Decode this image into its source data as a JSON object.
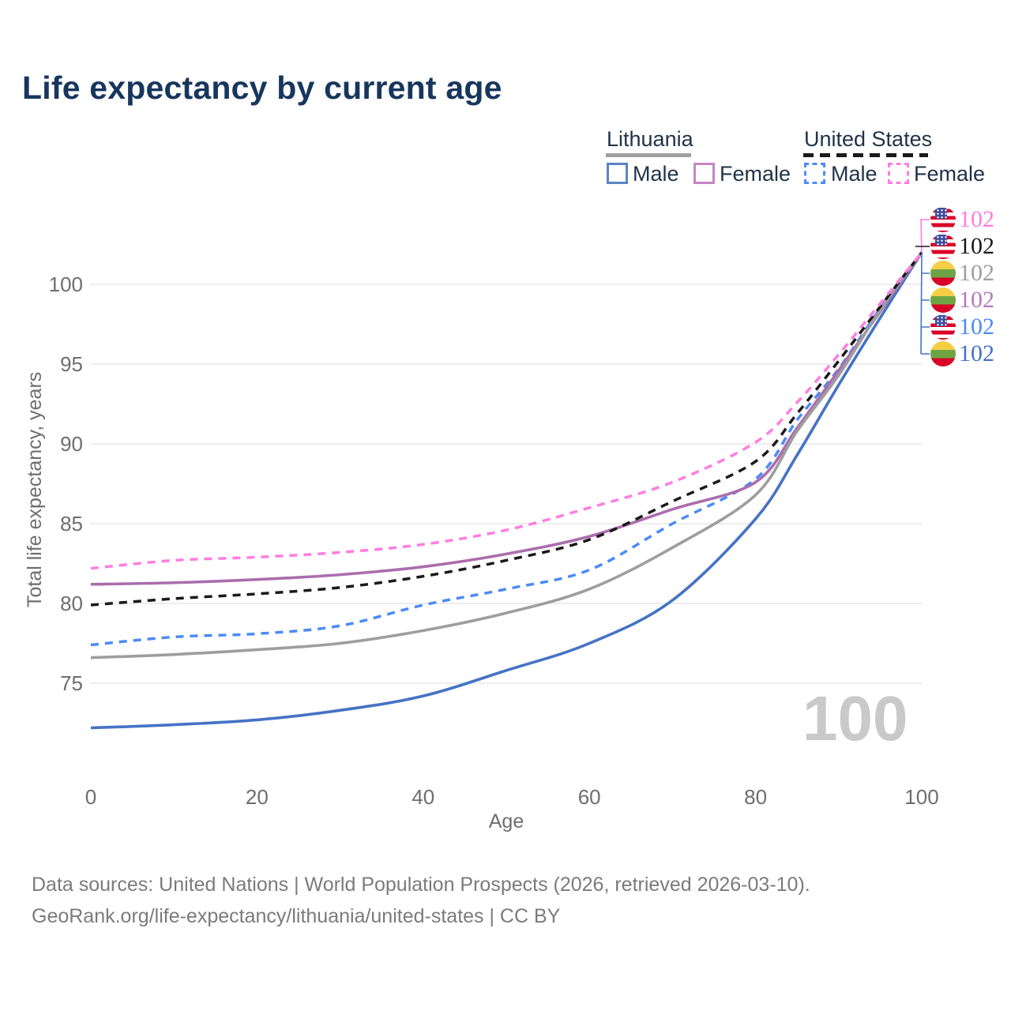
{
  "title": "Life expectancy by current age",
  "legend": {
    "groups": [
      {
        "label": "Lithuania",
        "line_style": "solid",
        "underline_color": "#a0a0a0",
        "items": [
          {
            "label": "Male",
            "color": "#4573c4"
          },
          {
            "label": "Female",
            "color": "#ab6dad"
          }
        ]
      },
      {
        "label": "United States",
        "line_style": "dashed",
        "underline_color": "#1a1a1a",
        "items": [
          {
            "label": "Male",
            "color": "#4c8bf5"
          },
          {
            "label": "Female",
            "color": "#ff7de1"
          }
        ]
      }
    ]
  },
  "chart_data": {
    "type": "line",
    "title": "Life expectancy by current age",
    "xlabel": "Age",
    "ylabel": "Total life expectancy, years",
    "xlim": [
      0,
      100
    ],
    "ylim": [
      71,
      103
    ],
    "x_ticks": [
      0,
      20,
      40,
      60,
      80,
      100
    ],
    "y_ticks": [
      75,
      80,
      85,
      90,
      95,
      100
    ],
    "grid": "horizontal",
    "legend_position": "top-right",
    "ages": [
      0,
      10,
      20,
      30,
      40,
      50,
      60,
      70,
      80,
      85,
      90,
      95,
      100
    ],
    "series": [
      {
        "name": "United States Female",
        "country": "United States",
        "sex": "Female",
        "flag": "us",
        "color": "#ff7de1",
        "dash": true,
        "values": [
          82.2,
          82.7,
          82.9,
          83.2,
          83.7,
          84.6,
          86.0,
          87.6,
          90.1,
          92.6,
          95.6,
          98.8,
          102
        ],
        "end_label": "102"
      },
      {
        "name": "United States Total",
        "country": "United States",
        "sex": "Total",
        "flag": "us",
        "color": "#1a1a1a",
        "dash": true,
        "values": [
          79.9,
          80.3,
          80.6,
          81.0,
          81.7,
          82.7,
          84.0,
          86.4,
          88.9,
          91.9,
          95.2,
          98.6,
          102
        ],
        "end_label": "102"
      },
      {
        "name": "Lithuania Total",
        "country": "Lithuania",
        "sex": "Total",
        "flag": "lt",
        "color": "#9e9e9e",
        "dash": false,
        "values": [
          76.6,
          76.8,
          77.1,
          77.5,
          78.3,
          79.4,
          80.9,
          83.5,
          86.8,
          90.8,
          94.3,
          98.4,
          102
        ],
        "end_label": "102"
      },
      {
        "name": "Lithuania Female",
        "country": "Lithuania",
        "sex": "Female",
        "flag": "lt",
        "color": "#ab6dad",
        "dash": false,
        "values": [
          81.2,
          81.3,
          81.5,
          81.8,
          82.3,
          83.1,
          84.2,
          85.9,
          87.6,
          91.0,
          94.6,
          98.3,
          102
        ],
        "end_label": "102"
      },
      {
        "name": "United States Male",
        "country": "United States",
        "sex": "Male",
        "flag": "us",
        "color": "#4c8bf5",
        "dash": true,
        "values": [
          77.4,
          77.9,
          78.1,
          78.6,
          79.9,
          80.9,
          82.1,
          85.0,
          87.8,
          91.5,
          94.7,
          98.5,
          102
        ],
        "end_label": "102"
      },
      {
        "name": "Lithuania Male",
        "country": "Lithuania",
        "sex": "Male",
        "flag": "lt",
        "color": "#4573c4",
        "dash": false,
        "values": [
          72.2,
          72.4,
          72.7,
          73.3,
          74.2,
          75.8,
          77.5,
          80.2,
          85.3,
          89.3,
          93.7,
          97.9,
          102
        ],
        "end_label": "102"
      }
    ]
  },
  "end_labels": [
    {
      "value": "102",
      "color": "#ff7de1",
      "flag": "us"
    },
    {
      "value": "102",
      "color": "#1a1a1a",
      "flag": "us"
    },
    {
      "value": "102",
      "color": "#9e9e9e",
      "flag": "lt"
    },
    {
      "value": "102",
      "color": "#b678c0",
      "flag": "lt"
    },
    {
      "value": "102",
      "color": "#4c8bf5",
      "flag": "us"
    },
    {
      "value": "102",
      "color": "#4573c4",
      "flag": "lt"
    }
  ],
  "watermark_age": "100",
  "footer": {
    "line1": "Data sources: United Nations | World Population Prospects (2026, retrieved 2026-03-10).",
    "line2": "GeoRank.org/life-expectancy/lithuania/united-states | CC BY"
  }
}
